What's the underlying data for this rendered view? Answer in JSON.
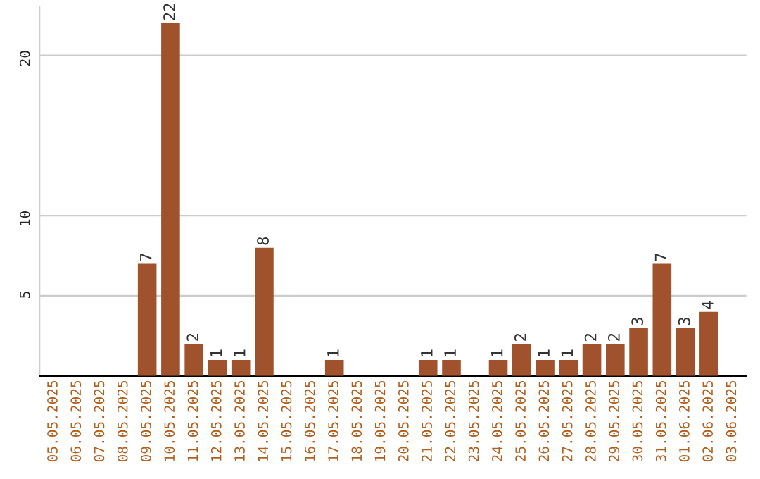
{
  "chart_data": {
    "type": "bar",
    "categories": [
      "05.05.2025",
      "06.05.2025",
      "07.05.2025",
      "08.05.2025",
      "09.05.2025",
      "10.05.2025",
      "11.05.2025",
      "12.05.2025",
      "13.05.2025",
      "14.05.2025",
      "15.05.2025",
      "16.05.2025",
      "17.05.2025",
      "18.05.2025",
      "19.05.2025",
      "20.05.2025",
      "21.05.2025",
      "22.05.2025",
      "23.05.2025",
      "24.05.2025",
      "25.05.2025",
      "26.05.2025",
      "27.05.2025",
      "28.05.2025",
      "29.05.2025",
      "30.05.2025",
      "31.05.2025",
      "01.06.2025",
      "02.06.2025",
      "03.06.2025"
    ],
    "values": [
      0,
      0,
      0,
      0,
      7,
      22,
      2,
      1,
      1,
      8,
      0,
      0,
      1,
      0,
      0,
      0,
      1,
      1,
      0,
      1,
      2,
      1,
      1,
      2,
      2,
      3,
      7,
      3,
      4,
      0
    ],
    "value_labels": [
      null,
      null,
      null,
      null,
      "7",
      "22",
      "2",
      "1",
      "1",
      "8",
      null,
      null,
      "1",
      null,
      null,
      null,
      "1",
      "1",
      null,
      "1",
      "2",
      "1",
      "1",
      "2",
      "2",
      "3",
      "7",
      "3",
      "4",
      null
    ],
    "color": "#a0522d",
    "ylim": [
      0,
      23
    ],
    "yticks": [
      5,
      10,
      20
    ],
    "grid": "y"
  }
}
